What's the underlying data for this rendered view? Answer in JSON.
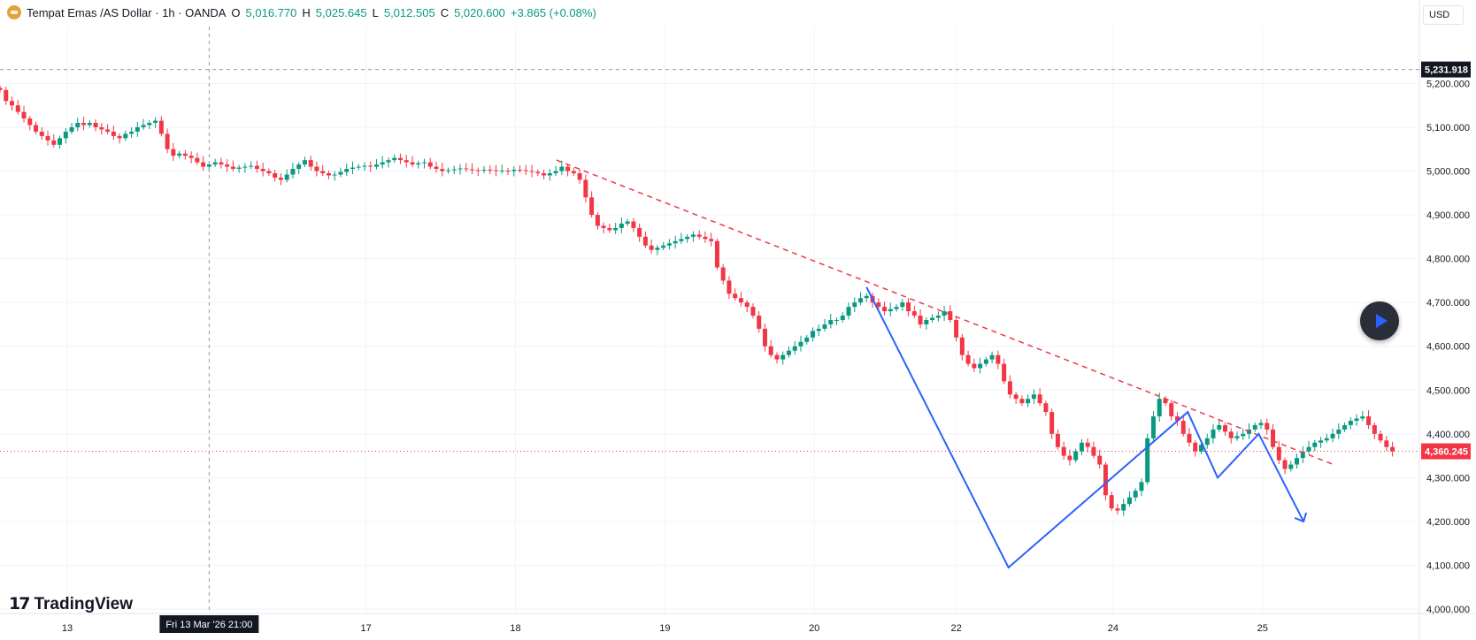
{
  "header": {
    "symbol_title": "Tempat Emas /AS Dollar · 1h · OANDA",
    "open_label": "O",
    "open": "5,016.770",
    "high_label": "H",
    "high": "5,025.645",
    "low_label": "L",
    "low": "5,012.505",
    "close_label": "C",
    "close": "5,020.600",
    "change": "+3.865 (+0.08%)",
    "logo_icon": "gold-bar-icon"
  },
  "currency_button": "USD",
  "play_button_icon": "play-icon",
  "branding": {
    "logo_icon": "tradingview-logo-icon",
    "text": "TradingView"
  },
  "colors": {
    "up": "#089981",
    "down": "#f23645",
    "drawing": "#2962ff",
    "trendline": "#f23645",
    "crosshair": "#9598a1"
  },
  "crosshair": {
    "time_label": "Fri 13 Mar '26   21:00",
    "price_label": "5,231.918",
    "time_index": 56,
    "price": 5231.918
  },
  "last_price": {
    "label": "4,360.245",
    "value": 4360.245
  },
  "chart_data": {
    "type": "candlestick",
    "title": "Tempat Emas /AS Dollar · 1h · OANDA",
    "xlabel": "",
    "ylabel": "",
    "ylim": [
      3990,
      5330
    ],
    "x_range": [
      0,
      380
    ],
    "y_ticks": [
      "5,200.000",
      "5,100.000",
      "5,000.000",
      "4,900.000",
      "4,800.000",
      "4,700.000",
      "4,600.000",
      "4,500.000",
      "4,400.000",
      "4,300.000",
      "4,200.000",
      "4,100.000",
      "4,000.000"
    ],
    "y_tick_values": [
      5200,
      5100,
      5000,
      4900,
      4800,
      4700,
      4600,
      4500,
      4400,
      4300,
      4200,
      4100,
      4000
    ],
    "x_ticks": [
      {
        "label": "13",
        "index": 18
      },
      {
        "label": "17",
        "index": 98
      },
      {
        "label": "18",
        "index": 138
      },
      {
        "label": "19",
        "index": 178
      },
      {
        "label": "20",
        "index": 218
      },
      {
        "label": "22",
        "index": 256
      },
      {
        "label": "24",
        "index": 298
      },
      {
        "label": "25",
        "index": 338
      }
    ],
    "grid": true,
    "candles_close": [
      5185,
      5160,
      5150,
      5135,
      5120,
      5105,
      5090,
      5080,
      5070,
      5060,
      5075,
      5090,
      5100,
      5110,
      5105,
      5110,
      5100,
      5095,
      5090,
      5080,
      5075,
      5085,
      5090,
      5100,
      5105,
      5110,
      5115,
      5085,
      5050,
      5035,
      5040,
      5035,
      5030,
      5020,
      5010,
      5015,
      5020,
      5015,
      5010,
      5005,
      5008,
      5010,
      5012,
      5005,
      5000,
      4995,
      4985,
      4980,
      4992,
      5005,
      5015,
      5025,
      5010,
      5000,
      4995,
      4990,
      4992,
      4998,
      5005,
      5008,
      5010,
      5012,
      5010,
      5015,
      5020,
      5025,
      5030,
      5025,
      5020,
      5015,
      5018,
      5020,
      5010,
      5005,
      5000,
      5002,
      5004,
      5006,
      5004,
      5002,
      5001,
      5003,
      5002,
      5000,
      5001,
      5000,
      5003,
      5002,
      5000,
      4998,
      4995,
      4990,
      4995,
      5000,
      5010,
      5000,
      4995,
      4980,
      4940,
      4900,
      4875,
      4870,
      4865,
      4870,
      4880,
      4885,
      4870,
      4850,
      4830,
      4820,
      4825,
      4830,
      4835,
      4840,
      4845,
      4850,
      4855,
      4850,
      4845,
      4840,
      4780,
      4750,
      4720,
      4710,
      4700,
      4690,
      4670,
      4640,
      4600,
      4580,
      4570,
      4580,
      4590,
      4600,
      4610,
      4620,
      4635,
      4640,
      4650,
      4660,
      4660,
      4670,
      4690,
      4700,
      4710,
      4715,
      4700,
      4690,
      4680,
      4685,
      4690,
      4700,
      4680,
      4670,
      4650,
      4660,
      4665,
      4670,
      4680,
      4660,
      4620,
      4580,
      4560,
      4550,
      4560,
      4570,
      4580,
      4560,
      4520,
      4490,
      4480,
      4470,
      4480,
      4490,
      4470,
      4450,
      4400,
      4370,
      4350,
      4340,
      4360,
      4380,
      4370,
      4350,
      4330,
      4260,
      4230,
      4225,
      4240,
      4255,
      4270,
      4290,
      4390,
      4440,
      4480,
      4470,
      4440,
      4430,
      4400,
      4380,
      4360,
      4375,
      4390,
      4410,
      4420,
      4405,
      4390,
      4395,
      4400,
      4410,
      4420,
      4425,
      4410,
      4370,
      4340,
      4320,
      4330,
      4345,
      4360,
      4370,
      4380,
      4385,
      4390,
      4400,
      4410,
      4420,
      4430,
      4435,
      4440,
      4420,
      4400,
      4385,
      4370,
      4360.245
    ],
    "candles_start_index": 0,
    "candles_step": 1.6,
    "trendline_dashed": [
      {
        "x": 149,
        "y": 5025
      },
      {
        "x": 357,
        "y": 4330
      }
    ],
    "drawing_path": [
      {
        "x": 232,
        "y": 4735
      },
      {
        "x": 270,
        "y": 4095
      },
      {
        "x": 318,
        "y": 4450
      },
      {
        "x": 326,
        "y": 4300
      },
      {
        "x": 337,
        "y": 4400
      },
      {
        "x": 349,
        "y": 4200
      }
    ]
  }
}
